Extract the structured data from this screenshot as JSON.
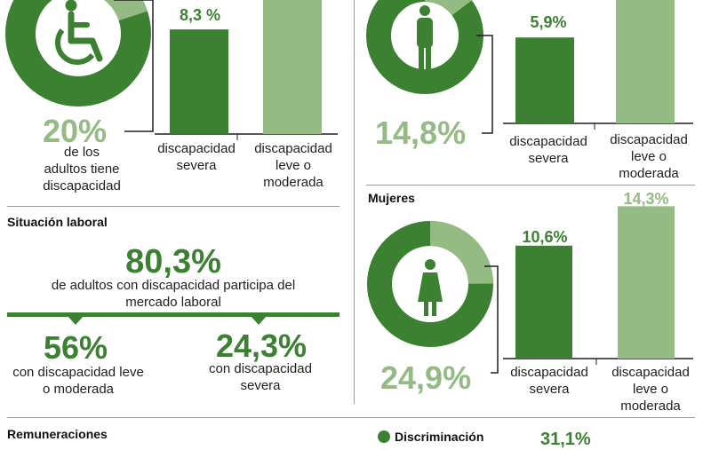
{
  "colors": {
    "dark_green": "#3b8131",
    "light_green": "#94bb84",
    "text": "#1e1e1e",
    "rule": "#9a9a9a"
  },
  "overall": {
    "donut_percent": "20%",
    "donut_value": 20,
    "caption": [
      "de los",
      "adultos tiene",
      "discapacidad"
    ],
    "icon": "wheelchair-icon"
  },
  "men": {
    "donut_percent": "14,8%",
    "donut_value": 14.8,
    "icon": "man-icon"
  },
  "women": {
    "title": "Mujeres",
    "donut_percent": "24,9%",
    "donut_value": 24.9,
    "icon": "woman-icon"
  },
  "labor": {
    "title": "Situación laboral",
    "main_percent": "80,3%",
    "main_caption": [
      "de adultos con discapacidad participa del",
      "mercado laboral"
    ],
    "left_percent": "56%",
    "left_caption": [
      "con discapacidad leve",
      "o moderada"
    ],
    "right_percent": "24,3%",
    "right_caption": [
      "con discapacidad",
      "severa"
    ]
  },
  "footer": {
    "remuneraciones": "Remuneraciones",
    "discriminacion": "Discriminación",
    "discriminacion_value": "31,1%"
  },
  "bar_labels": {
    "severa": [
      "discapacidad",
      "severa"
    ],
    "leve": [
      "discapacidad",
      "leve o",
      "moderada"
    ]
  },
  "chart_data": [
    {
      "type": "bar",
      "categories": [
        "discapacidad severa",
        "discapacidad leve o moderada"
      ],
      "values": [
        8.3,
        null
      ],
      "value_labels": [
        "8,3 %",
        ""
      ]
    },
    {
      "type": "bar",
      "categories": [
        "discapacidad severa",
        "discapacidad leve o moderada"
      ],
      "values": [
        5.9,
        null
      ],
      "value_labels": [
        "5,9%",
        ""
      ]
    },
    {
      "type": "bar",
      "title": "Mujeres",
      "categories": [
        "discapacidad severa",
        "discapacidad leve o moderada"
      ],
      "values": [
        10.6,
        14.3
      ],
      "value_labels": [
        "10,6%",
        "14,3%"
      ]
    }
  ]
}
